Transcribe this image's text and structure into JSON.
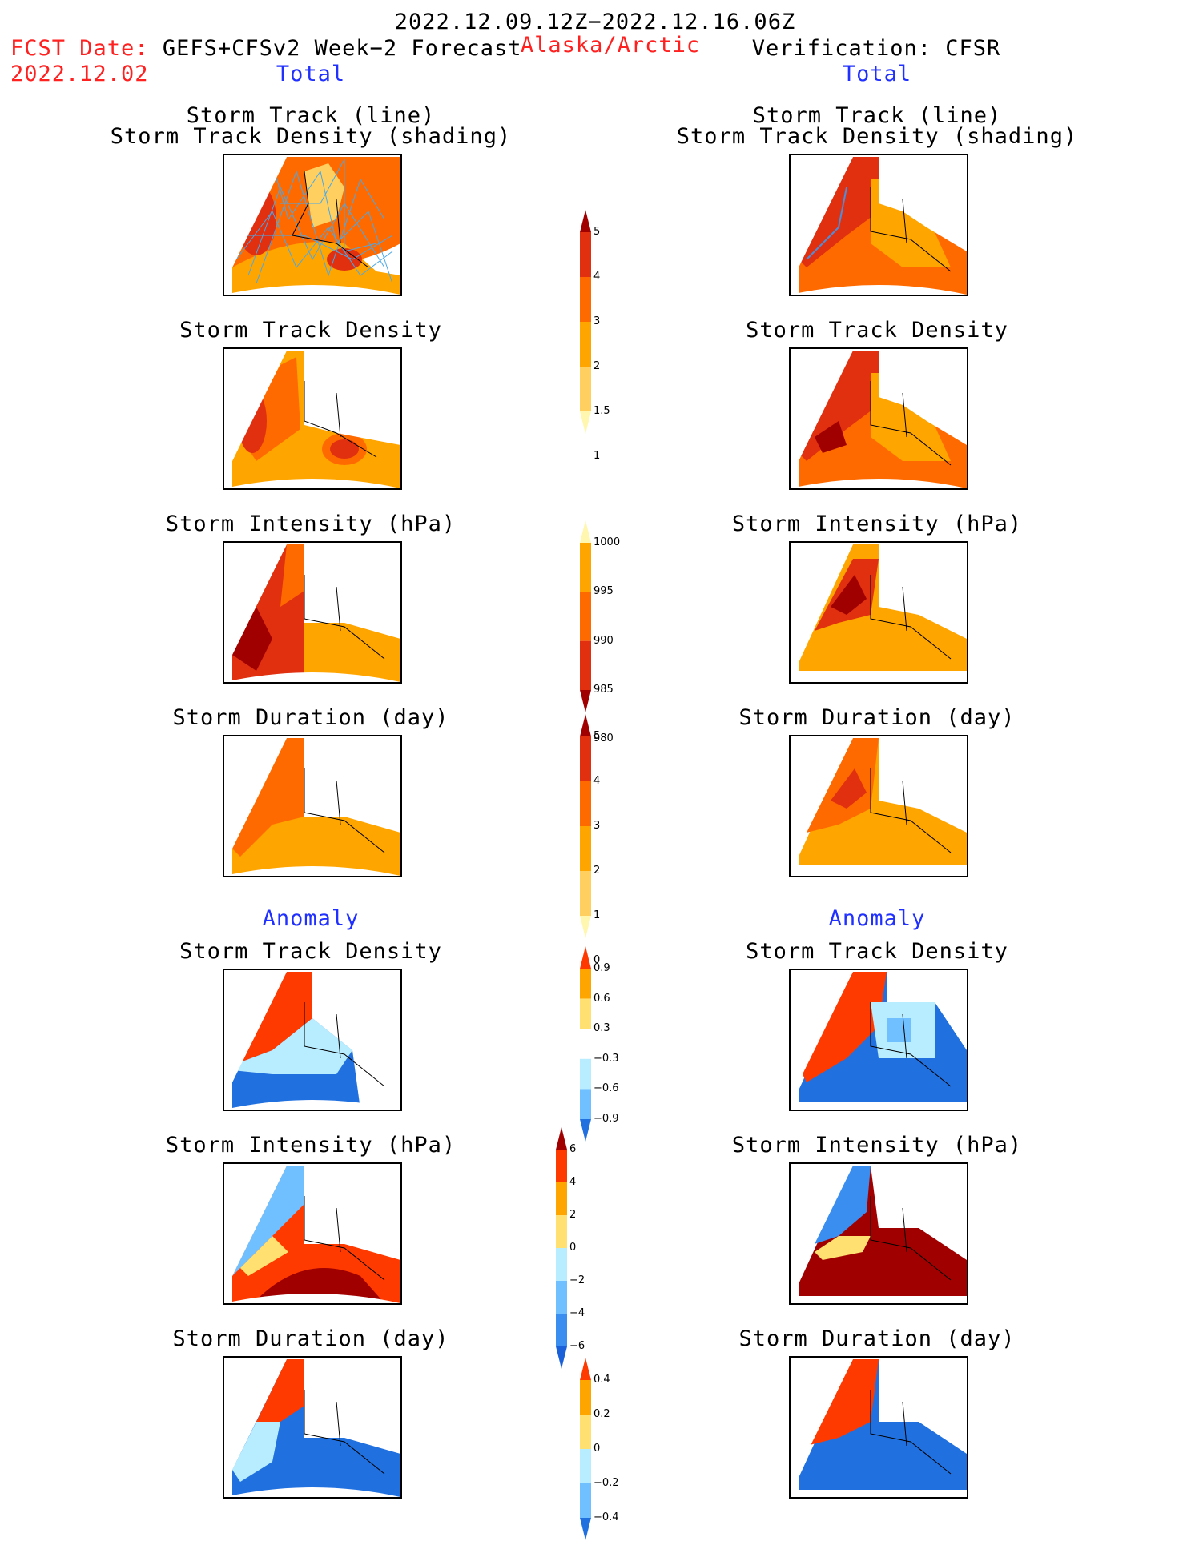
{
  "header": {
    "date_range": "2022.12.09.12Z−2022.12.16.06Z",
    "fcst_label": "FCST Date:",
    "fcst_model": "GEFS+CFSv2 Week−2 Forecast",
    "fcst_date": "2022.12.02",
    "region": "Alaska/Arctic",
    "verification": "Verification: CFSR"
  },
  "left_column": {
    "total_label": "Total",
    "anomaly_label": "Anomaly",
    "total_panels": [
      {
        "title": "Storm Track (line)",
        "subtitle": "Storm Track Density (shading)"
      },
      {
        "title": "Storm Track Density"
      },
      {
        "title": "Storm Intensity (hPa)"
      },
      {
        "title": "Storm Duration (day)"
      }
    ],
    "anomaly_panels": [
      {
        "title": "Storm Track Density"
      },
      {
        "title": "Storm Intensity (hPa)"
      },
      {
        "title": "Storm Duration (day)"
      }
    ]
  },
  "right_column": {
    "total_label": "Total",
    "anomaly_label": "Anomaly",
    "total_panels": [
      {
        "title": "Storm Track (line)",
        "subtitle": "Storm Track Density (shading)"
      },
      {
        "title": "Storm Track Density"
      },
      {
        "title": "Storm Intensity (hPa)"
      },
      {
        "title": "Storm Duration (day)"
      }
    ],
    "anomaly_panels": [
      {
        "title": "Storm Track Density"
      },
      {
        "title": "Storm Intensity (hPa)"
      },
      {
        "title": "Storm Duration (day)"
      }
    ]
  },
  "colorbars": {
    "density": {
      "labels": [
        "5",
        "4",
        "3",
        "2",
        "1.5",
        "1"
      ],
      "colors": [
        "#a00000",
        "#e03010",
        "#ff6a00",
        "#ffa500",
        "#ffd060",
        "#fff7b0"
      ]
    },
    "intensity": {
      "labels": [
        "1000",
        "995",
        "990",
        "985",
        "980"
      ],
      "colors": [
        "#fff7b0",
        "#ffa500",
        "#ff6a00",
        "#e03010",
        "#a00000"
      ]
    },
    "duration": {
      "labels": [
        "5",
        "4",
        "3",
        "2",
        "1",
        "0"
      ],
      "colors": [
        "#a00000",
        "#e03010",
        "#ff6a00",
        "#ffa500",
        "#ffd060",
        "#fff7b0"
      ]
    },
    "anom_density": {
      "labels": [
        "0.9",
        "0.6",
        "0.3",
        "−0.3",
        "−0.6",
        "−0.9"
      ],
      "colors": [
        "#ff3a00",
        "#ffa500",
        "#ffe070",
        "#ffffff",
        "#b8ecff",
        "#70c0ff",
        "#2070e0"
      ]
    },
    "anom_intensity": {
      "labels": [
        "6",
        "4",
        "2",
        "0",
        "−2",
        "−4",
        "−6"
      ],
      "colors": [
        "#a00000",
        "#ff3a00",
        "#ffa500",
        "#ffe070",
        "#b8ecff",
        "#70c0ff",
        "#3a8ef0",
        "#1a60d8"
      ]
    },
    "anom_duration": {
      "labels": [
        "0.4",
        "0.2",
        "0",
        "−0.2",
        "−0.4"
      ],
      "colors": [
        "#ff3a00",
        "#ffa500",
        "#ffe070",
        "#b8ecff",
        "#70c0ff",
        "#2070e0"
      ]
    }
  }
}
